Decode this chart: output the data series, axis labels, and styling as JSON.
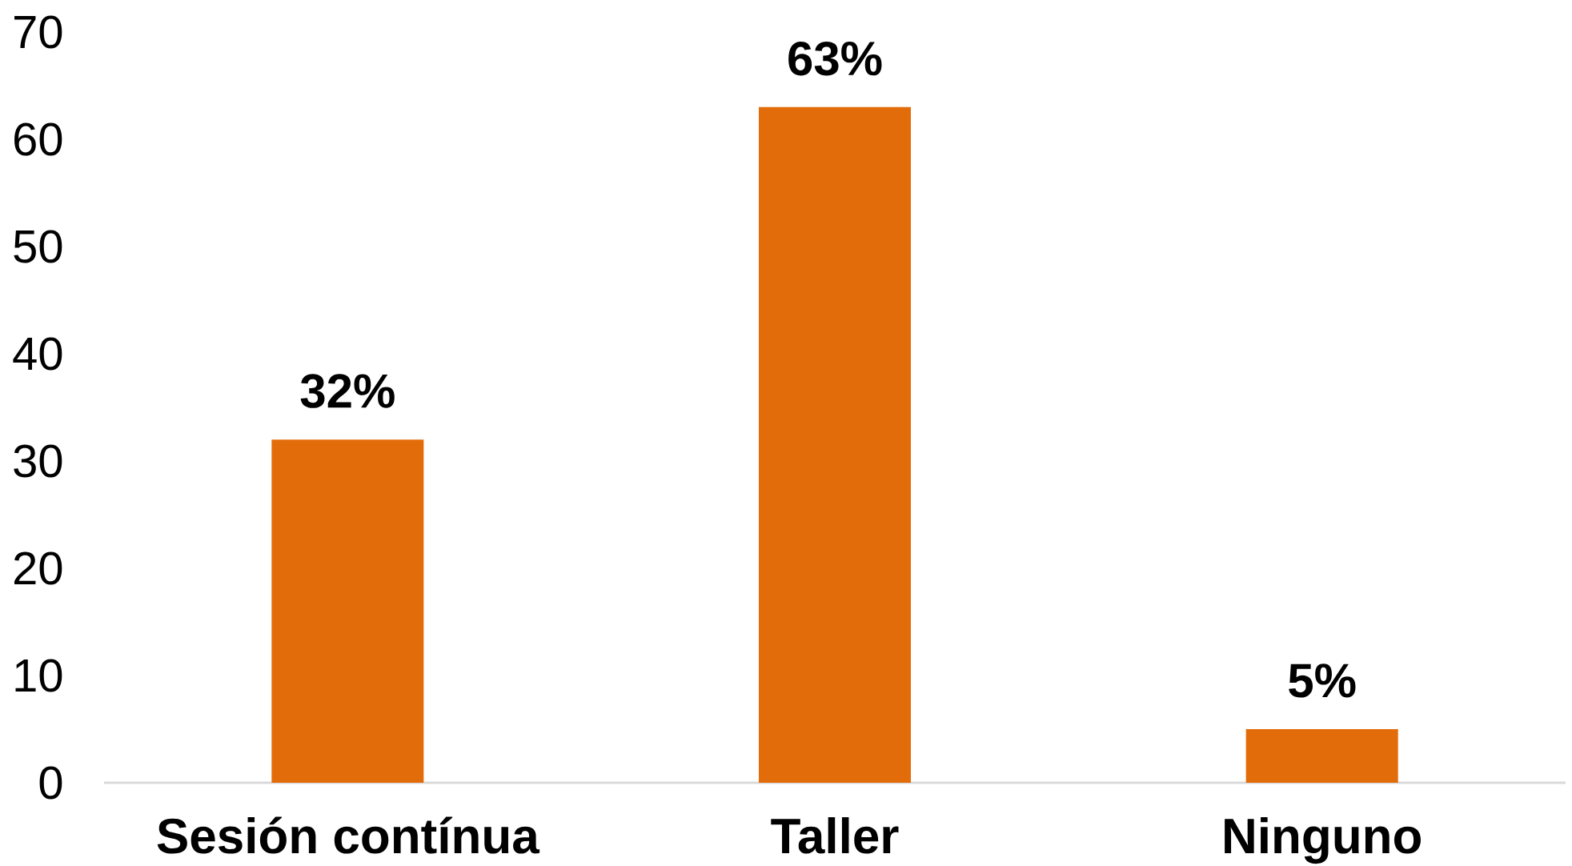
{
  "chart_data": {
    "type": "bar",
    "categories": [
      "Sesión contínua",
      "Taller",
      "Ninguno"
    ],
    "values": [
      32,
      63,
      5
    ],
    "value_labels": [
      "32%",
      "63%",
      "5%"
    ],
    "color": "#e36c0a",
    "ylim": [
      0,
      70
    ],
    "yticks": [
      0,
      10,
      20,
      30,
      40,
      50,
      60,
      70
    ]
  }
}
